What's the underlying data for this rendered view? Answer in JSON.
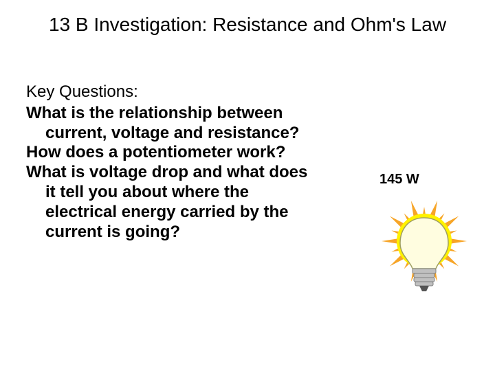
{
  "title": "13 B Investigation: Resistance and Ohm's Law",
  "key_questions_label": "Key Questions:",
  "questions": {
    "q1": "What is the relationship between current, voltage and resistance?",
    "q2": "How does a potentiometer work?",
    "q3": "What is voltage drop and what does it tell you about where the electrical energy carried by the current is going?"
  },
  "bulb": {
    "wattage_label": "145 W",
    "colors": {
      "ray": "#f7a528",
      "glow": "#fff200",
      "bulb_fill": "#fffde0",
      "bulb_stroke": "#9f9f60",
      "base_fill": "#c0c0c0",
      "base_stroke": "#808080",
      "tip": "#555555"
    }
  },
  "style": {
    "background": "#ffffff",
    "text_color": "#000000",
    "title_fontsize": 28,
    "body_fontsize": 24
  }
}
